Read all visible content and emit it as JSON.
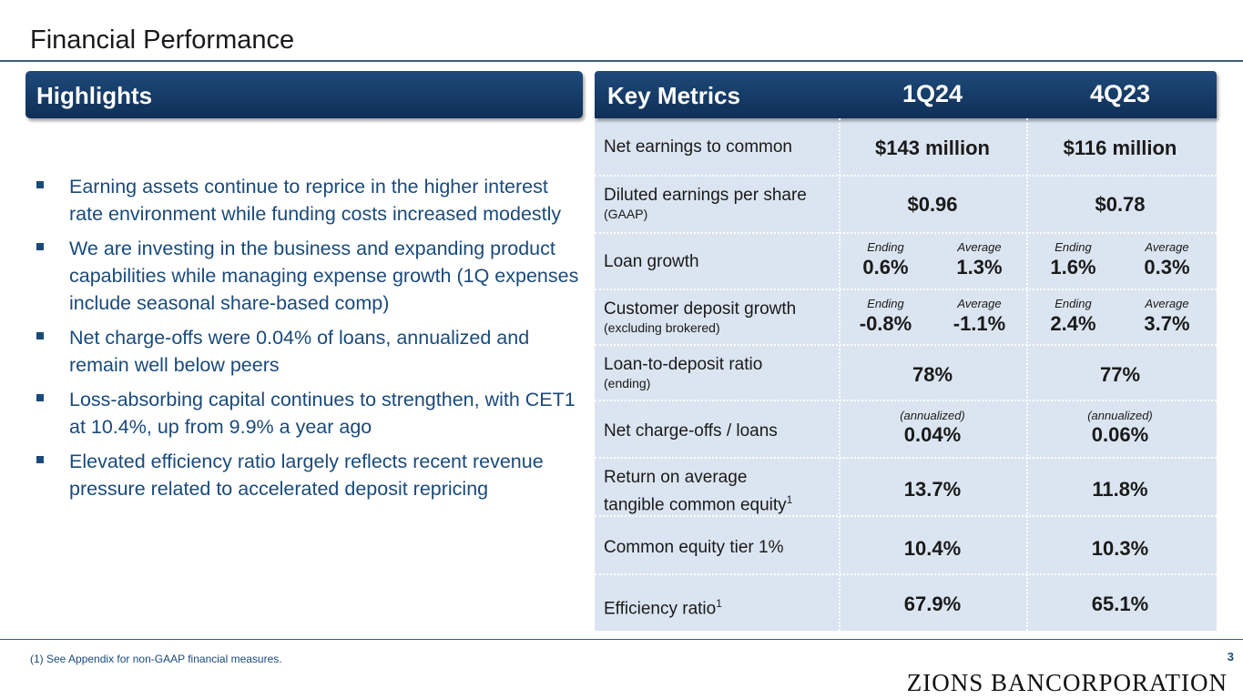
{
  "title": "Financial Performance",
  "highlights": {
    "header": "Highlights",
    "bullets": [
      "Earning assets continue to reprice in the higher interest rate environment while funding costs increased modestly",
      "We are investing in the business and expanding product capabilities while managing expense growth (1Q expenses include seasonal share-based comp)",
      "Net charge-offs were 0.04% of loans, annualized and remain well below peers",
      "Loss-absorbing capital continues to strengthen, with CET1 at 10.4%, up from 9.9% a year ago",
      "Elevated efficiency ratio largely reflects recent revenue pressure related to accelerated deposit repricing"
    ]
  },
  "key_metrics": {
    "header": "Key Metrics",
    "period1": "1Q24",
    "period2": "4Q23",
    "rows": {
      "net_earnings": {
        "label": "Net earnings to common",
        "v1": "$143 million",
        "v2": "$116 million"
      },
      "eps": {
        "label": "Diluted earnings per share",
        "sub": "(GAAP)",
        "v1": "$0.96",
        "v2": "$0.78"
      },
      "loan_growth": {
        "label": "Loan growth",
        "cap_ending": "Ending",
        "cap_average": "Average",
        "p1_ending": "0.6%",
        "p1_average": "1.3%",
        "p2_ending": "1.6%",
        "p2_average": "0.3%"
      },
      "deposit_growth": {
        "label": "Customer deposit growth",
        "sub": "(excluding brokered)",
        "cap_ending": "Ending",
        "cap_average": "Average",
        "p1_ending": "-0.8%",
        "p1_average": "-1.1%",
        "p2_ending": "2.4%",
        "p2_average": "3.7%"
      },
      "ltd": {
        "label": "Loan-to-deposit ratio",
        "sub": "(ending)",
        "v1": "78%",
        "v2": "77%"
      },
      "nco": {
        "label": "Net charge-offs / loans",
        "cap": "(annualized)",
        "v1": "0.04%",
        "v2": "0.06%"
      },
      "rotce": {
        "label_line1": "Return on average",
        "label_line2": "tangible common equity",
        "sup": "1",
        "v1": "13.7%",
        "v2": "11.8%"
      },
      "cet1": {
        "label": "Common equity tier 1%",
        "v1": "10.4%",
        "v2": "10.3%"
      },
      "efficiency": {
        "label": "Efficiency ratio",
        "sup": "1",
        "v1": "67.9%",
        "v2": "65.1%"
      }
    }
  },
  "footnote": "(1) See Appendix for non-GAAP financial measures.",
  "page_number": "3",
  "logo_text": "ZIONS BANCORPORATION"
}
